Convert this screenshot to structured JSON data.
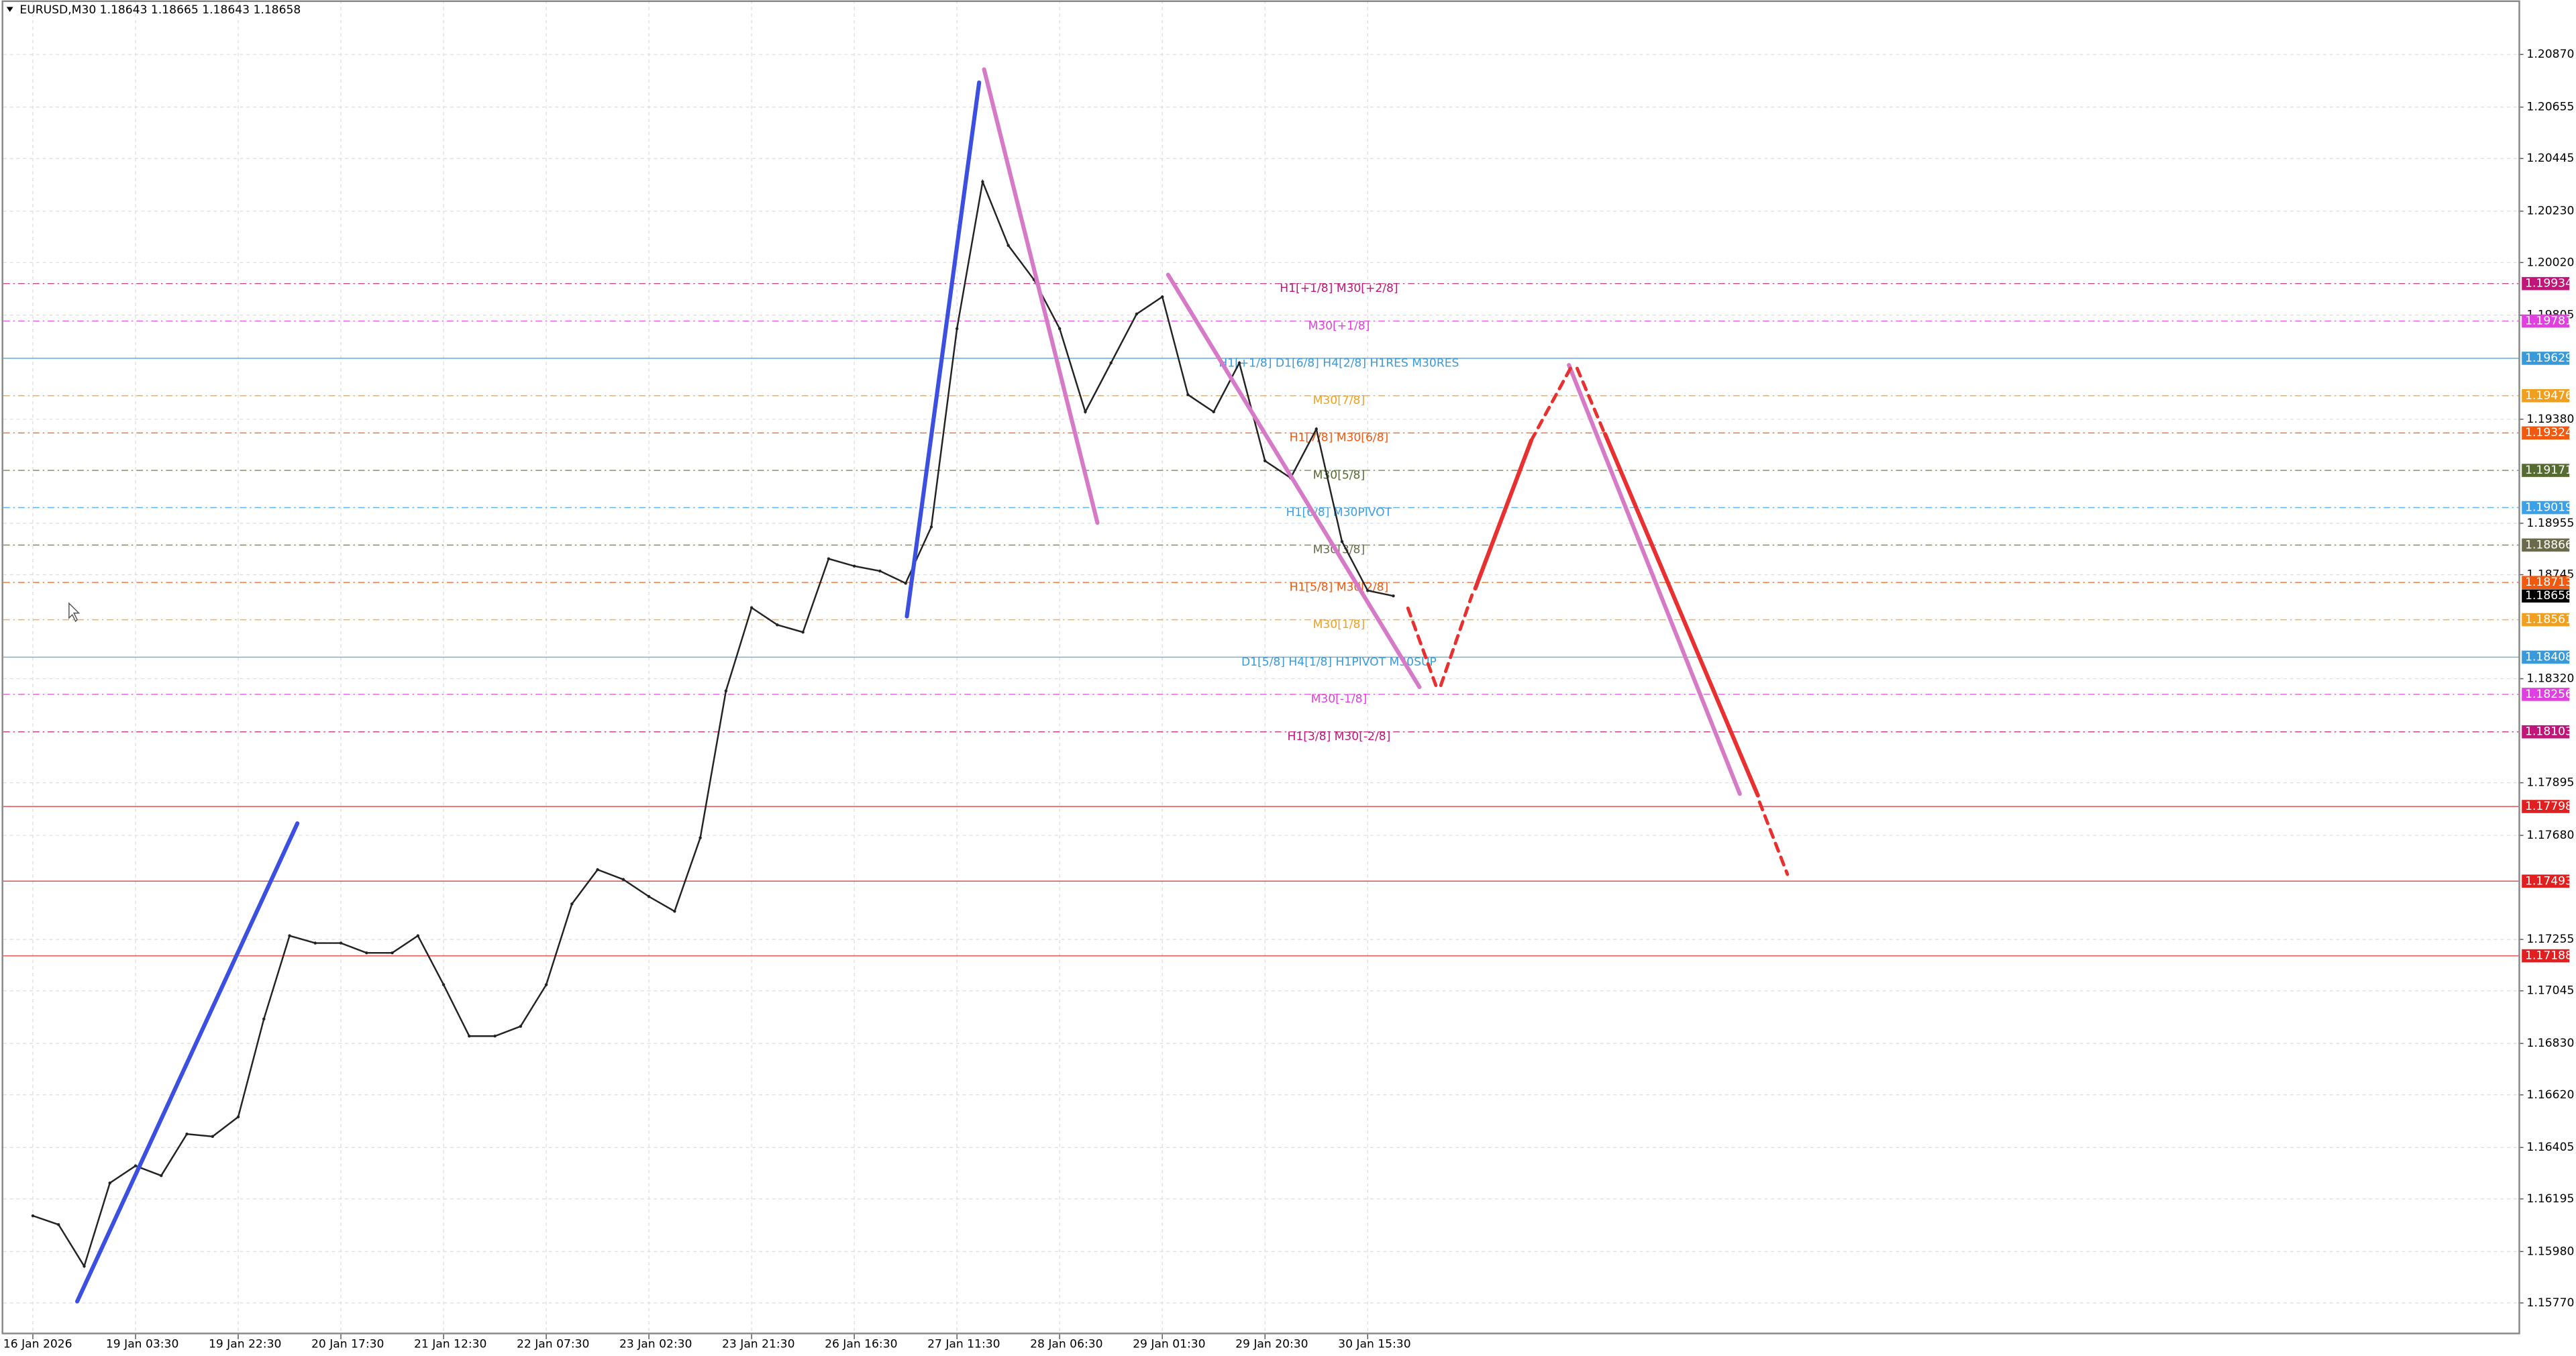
{
  "chart_data": {
    "type": "line",
    "title": "EURUSD,M30  1.18643 1.18665 1.18643 1.18658",
    "categories": [
      "16 Jan 2026",
      null,
      null,
      null,
      "19 Jan 03:30",
      null,
      null,
      null,
      "19 Jan 22:30",
      null,
      null,
      null,
      "20 Jan 17:30",
      null,
      null,
      null,
      "21 Jan 12:30",
      null,
      null,
      null,
      "22 Jan 07:30",
      null,
      null,
      null,
      "23 Jan 02:30",
      null,
      null,
      null,
      "23 Jan 21:30",
      null,
      null,
      null,
      "26 Jan 16:30",
      null,
      null,
      null,
      "27 Jan 11:30",
      null,
      null,
      null,
      "28 Jan 06:30",
      null,
      null,
      null,
      "29 Jan 01:30",
      null,
      null,
      null,
      "29 Jan 20:30",
      null,
      null,
      null,
      "30 Jan 15:30",
      null
    ],
    "values": [
      1.16126,
      1.1609,
      1.1592,
      1.1626,
      1.1633,
      1.1629,
      1.1646,
      1.1645,
      1.1653,
      1.1693,
      1.1727,
      1.1724,
      1.1724,
      1.172,
      1.172,
      1.1727,
      1.1707,
      1.1686,
      1.1686,
      1.169,
      1.1707,
      1.174,
      1.1754,
      1.175,
      1.1743,
      1.1737,
      1.1767,
      1.1827,
      1.1861,
      1.1854,
      1.1851,
      1.1881,
      1.1878,
      1.1876,
      1.1871,
      1.1894,
      1.1975,
      1.2035,
      1.2009,
      1.1995,
      1.1975,
      1.1941,
      1.1961,
      1.1981,
      1.1988,
      1.1948,
      1.1941,
      1.1961,
      1.1921,
      1.1914,
      1.1934,
      1.1888,
      1.1868,
      1.18658
    ],
    "color": "#222222",
    "ylim": [
      1.15642,
      1.21091
    ],
    "yticks": [
      {
        "value": 1.2087,
        "label": "1.20870"
      },
      1.20655,
      1.20445,
      {
        "value": 1.2023,
        "label": "1.20230"
      },
      {
        "value": 1.2002,
        "label": "1.20020"
      },
      1.19805,
      {
        "value": 1.1938,
        "label": "1.19380"
      },
      1.18955,
      1.18745,
      {
        "value": 1.1832,
        "label": "1.18320"
      },
      1.17895,
      {
        "value": 1.1768,
        "label": "1.17680"
      },
      1.17255,
      1.17045,
      {
        "value": 1.1683,
        "label": "1.16830"
      },
      {
        "value": 1.1662,
        "label": "1.16620"
      },
      1.16405,
      1.16195,
      {
        "value": 1.1598,
        "label": "1.15980"
      },
      {
        "value": 1.1577,
        "label": "1.15770"
      }
    ],
    "grid": true,
    "levels": [
      {
        "value": 1.19934,
        "text": "H1[+1/8] M30[+2/8]",
        "color": "#c0167a"
      },
      {
        "value": 1.19781,
        "text": "M30[+1/8]",
        "color": "#e040e0"
      },
      {
        "value": 1.19629,
        "text": "H1[+1/8] D1[6/8] H4[2/8] H1RES M30RES",
        "color": "#3a9ad9"
      },
      {
        "value": 1.19476,
        "text": "M30[7/8]",
        "color": "#f0a020"
      },
      {
        "value": 1.19324,
        "text": "H1[7/8] M30[6/8]",
        "color": "#f05a10"
      },
      {
        "value": 1.19171,
        "text": "M30[5/8]",
        "color": "#556b2f"
      },
      {
        "value": 1.19019,
        "text": "H1[6/8] M30PIVOT",
        "color": "#3aa0e8"
      },
      {
        "value": 1.18866,
        "text": "M30[3/8]",
        "color": "#6b6b4a"
      },
      {
        "value": 1.18713,
        "text": "H1[5/8] M30[2/8]",
        "color": "#f05a10"
      },
      {
        "value": 1.18658,
        "color": "#000000"
      },
      {
        "value": 1.18561,
        "text": "M30[1/8]",
        "color": "#f0a020"
      },
      {
        "value": 1.18408,
        "text": "D1[5/8] H4[1/8] H1PIVOT M30SUP",
        "color": "#3a9ad9"
      },
      {
        "value": 1.18256,
        "text": "M30[-1/8]",
        "color": "#e040e0"
      },
      {
        "value": 1.18103,
        "text": "H1[3/8] M30[-2/8]",
        "color": "#c0167a"
      },
      {
        "value": 1.17798,
        "color": "#e02020"
      },
      {
        "value": 1.17493,
        "color": "#e02020"
      },
      {
        "value": 1.17188,
        "color": "#e02020"
      }
    ]
  }
}
